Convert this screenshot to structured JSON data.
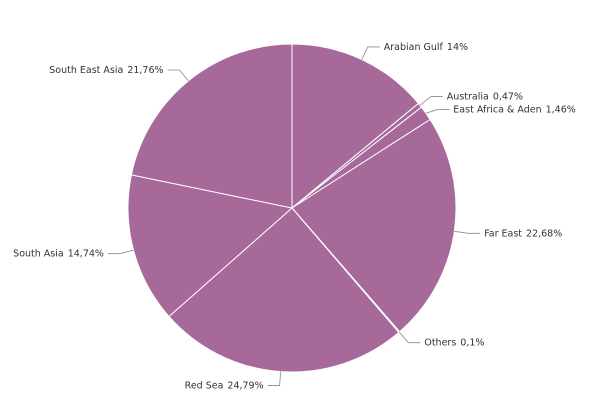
{
  "chart_data": {
    "type": "pie",
    "categories": [
      "Arabian Gulf",
      "Australia",
      "East Africa & Aden",
      "Far East",
      "Others",
      "Red Sea",
      "South Asia",
      "South East Asia"
    ],
    "values": [
      14,
      0.47,
      1.46,
      22.68,
      0.1,
      24.79,
      14.74,
      21.76
    ],
    "value_labels": [
      "14%",
      "0,47%",
      "1,46%",
      "22,68%",
      "0,1%",
      "24,79%",
      "14,74%",
      "21,76%"
    ],
    "color": "#a66999"
  }
}
